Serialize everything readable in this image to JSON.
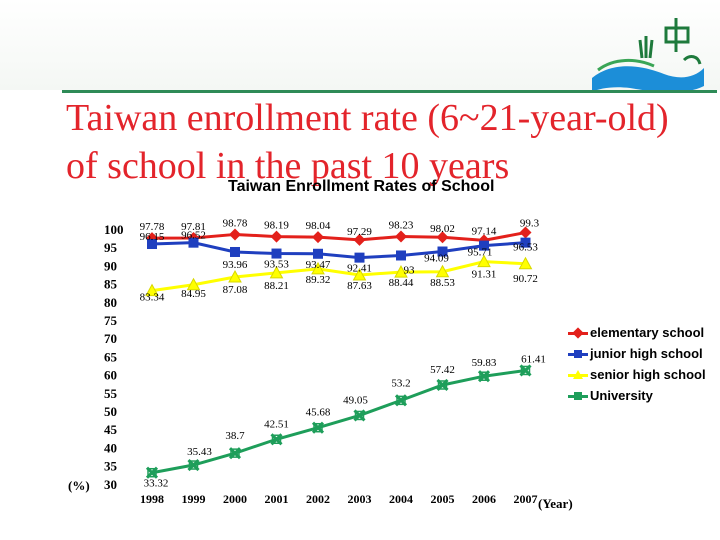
{
  "slide": {
    "title": "Taiwan enrollment rate (6~21-year-old) of school in the past 10 years"
  },
  "colors": {
    "title": "#e3242b",
    "accent_line": "#2e8b57",
    "elementary": "#e3201b",
    "junior": "#1f3fbf",
    "senior": "#ffff00",
    "university": "#1e9e5a"
  },
  "chart_data": {
    "type": "line",
    "title": "Taiwan  Enrollment Rates of School",
    "xlabel": "(Year)",
    "ylabel": "(%)",
    "ylim": [
      30,
      100
    ],
    "yticks": [
      "100",
      "95",
      "90",
      "85",
      "80",
      "75",
      "70",
      "65",
      "60",
      "55",
      "50",
      "45",
      "40",
      "35",
      "30"
    ],
    "x": [
      "1998",
      "1999",
      "2000",
      "2001",
      "2002",
      "2003",
      "2004",
      "2005",
      "2006",
      "2007"
    ],
    "legend_position": "right",
    "series": [
      {
        "name": "elementary school",
        "color": "#e3201b",
        "marker": "diamond",
        "values": [
          97.78,
          97.81,
          98.78,
          98.19,
          98.04,
          97.29,
          98.23,
          98.02,
          97.14,
          99.3
        ],
        "labels": [
          "97.78",
          "97.81",
          "98.78",
          "98.19",
          "98.04",
          "97.29",
          "98.23",
          "98.02",
          "97.14",
          "99.3"
        ]
      },
      {
        "name": "junior high school",
        "color": "#1f3fbf",
        "marker": "square",
        "values": [
          96.15,
          96.52,
          93.96,
          93.53,
          93.47,
          92.41,
          93,
          94.09,
          95.71,
          96.53
        ],
        "labels": [
          "96.15",
          "96.52",
          "93.96",
          "93.53",
          "93.47",
          "92.41",
          "93",
          "94.09",
          "95.71",
          "96.53"
        ]
      },
      {
        "name": "senior high school",
        "color": "#ffff00",
        "marker": "triangle",
        "values": [
          83.34,
          84.95,
          87.08,
          88.21,
          89.32,
          87.63,
          88.44,
          88.53,
          91.31,
          90.72
        ],
        "labels": [
          "83.34",
          "84.95",
          "87.08",
          "88.21",
          "89.32",
          "87.63",
          "88.44",
          "88.53",
          "91.31",
          "90.72"
        ]
      },
      {
        "name": "University",
        "color": "#1e9e5a",
        "marker": "cross",
        "values": [
          33.32,
          35.43,
          38.7,
          42.51,
          45.68,
          49.05,
          53.2,
          57.42,
          59.83,
          61.41
        ],
        "labels": [
          "33.32",
          "35.43",
          "38.7",
          "42.51",
          "45.68",
          "49.05",
          "53.2",
          "57.42",
          "59.83",
          "61.41"
        ]
      }
    ]
  }
}
